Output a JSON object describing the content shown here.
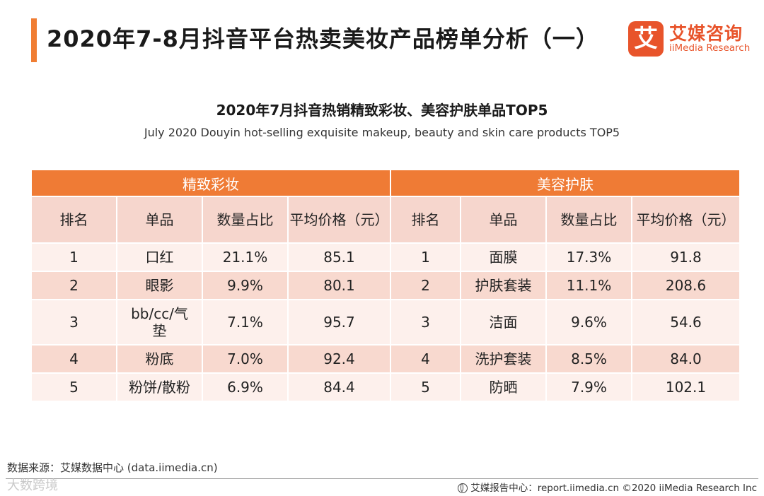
{
  "header": {
    "title": "2020年7-8月抖音平台热卖美妆产品榜单分析（一）"
  },
  "logo": {
    "mark": "艾",
    "cn": "艾媒咨询",
    "en": "iiMedia Research",
    "brand_color": "#e8542b"
  },
  "chart": {
    "title": "2020年7月抖音热销精致彩妆、美容护肤单品TOP5",
    "subtitle": "July 2020 Douyin hot-selling exquisite makeup, beauty and skin care products TOP5"
  },
  "table": {
    "groups": [
      "精致彩妆",
      "美容护肤"
    ],
    "columns": [
      "排名",
      "单品",
      "数量占比",
      "平均价格（元）",
      "排名",
      "单品",
      "数量占比",
      "平均价格（元）"
    ],
    "rows": [
      [
        "1",
        "口红",
        "21.1%",
        "85.1",
        "1",
        "面膜",
        "17.3%",
        "91.8"
      ],
      [
        "2",
        "眼影",
        "9.9%",
        "80.1",
        "2",
        "护肤套装",
        "11.1%",
        "208.6"
      ],
      [
        "3",
        "bb/cc/气垫",
        "7.1%",
        "95.7",
        "3",
        "洁面",
        "9.6%",
        "54.6"
      ],
      [
        "4",
        "粉底",
        "7.0%",
        "92.4",
        "4",
        "洗护套装",
        "8.5%",
        "84.0"
      ],
      [
        "5",
        "粉饼/散粉",
        "6.9%",
        "84.4",
        "5",
        "防晒",
        "7.9%",
        "102.1"
      ]
    ]
  },
  "footer": {
    "source": "数据来源：艾媒数据中心 (data.iimedia.cn)",
    "watermark": "大数跨境",
    "report_center": "艾媒报告中心：report.iimedia.cn  ©2020  iiMedia Research  Inc"
  },
  "colors": {
    "accent": "#f07d33",
    "header_fill": "#ef7b35",
    "column_header_fill": "#f6d6cd",
    "row_light": "#fdf0ec",
    "row_dark": "#f8d9cf"
  }
}
